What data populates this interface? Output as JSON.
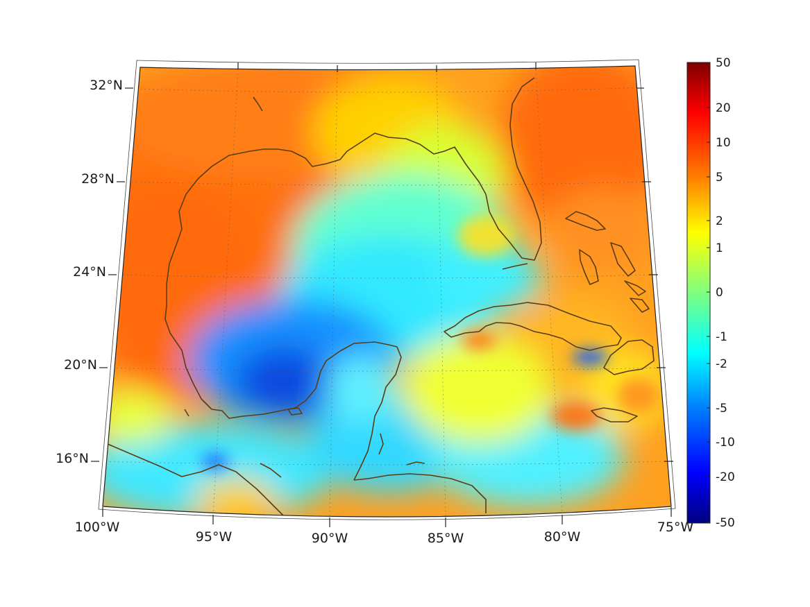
{
  "map": {
    "lon_labels": [
      "100°W",
      "95°W",
      "90°W",
      "85°W",
      "80°W",
      "75°W"
    ],
    "lat_labels": [
      "32°N",
      "28°N",
      "24°N",
      "20°N",
      "16°N"
    ],
    "extent": {
      "lon": [
        -100,
        -75
      ],
      "lat": [
        14,
        33
      ]
    },
    "coastline_color": "#5a3c14"
  },
  "colorbar": {
    "colormap": "jet",
    "ticks": [
      "50",
      "20",
      "10",
      "5",
      "2",
      "1",
      "0",
      "-1",
      "-2",
      "-5",
      "-10",
      "-20",
      "-50"
    ]
  }
}
